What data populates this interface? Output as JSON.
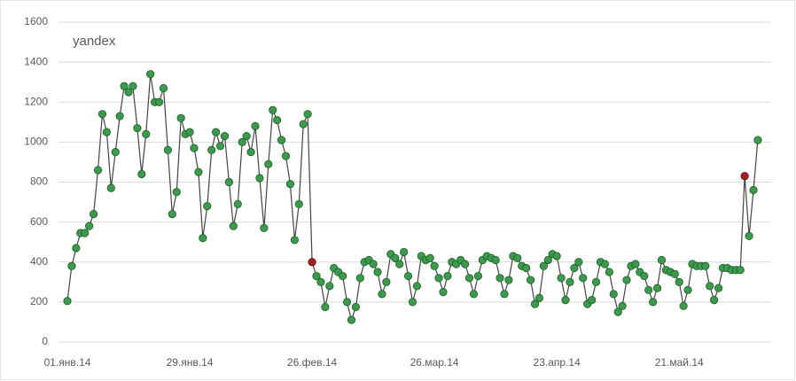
{
  "chart_data": {
    "type": "line",
    "categories": [
      "01.янв.14",
      null,
      null,
      null,
      null,
      null,
      null,
      null,
      null,
      null,
      null,
      null,
      null,
      null,
      null,
      null,
      null,
      null,
      null,
      null,
      null,
      null,
      null,
      null,
      null,
      null,
      null,
      null,
      "29.янв.14",
      null,
      null,
      null,
      null,
      null,
      null,
      null,
      null,
      null,
      null,
      null,
      null,
      null,
      null,
      null,
      null,
      null,
      null,
      null,
      null,
      null,
      null,
      null,
      null,
      null,
      null,
      null,
      "26.фев.14",
      null,
      null,
      null,
      null,
      null,
      null,
      null,
      null,
      null,
      null,
      null,
      null,
      null,
      null,
      null,
      null,
      null,
      null,
      null,
      null,
      null,
      null,
      null,
      null,
      null,
      null,
      null,
      "26.мар.14",
      null,
      null,
      null,
      null,
      null,
      null,
      null,
      null,
      null,
      null,
      null,
      null,
      null,
      null,
      null,
      null,
      null,
      null,
      null,
      null,
      null,
      null,
      null,
      null,
      null,
      null,
      null,
      "23.апр.14",
      null,
      null,
      null,
      null,
      null,
      null,
      null,
      null,
      null,
      null,
      null,
      null,
      null,
      null,
      null,
      null,
      null,
      null,
      null,
      null,
      null,
      null,
      null,
      null,
      null,
      null,
      null,
      "21.май.14",
      null,
      null,
      null,
      null,
      null,
      null,
      null,
      null,
      null,
      null,
      null,
      null,
      null,
      null,
      null,
      null,
      null,
      null
    ],
    "series": [
      {
        "name": "yandex",
        "color": "#444444",
        "marker_color": "#3c9a4c",
        "highlight_color": "#a61e22",
        "highlight_indices": [
          56,
          155
        ],
        "values": [
          205,
          380,
          470,
          545,
          545,
          580,
          640,
          860,
          1140,
          1050,
          770,
          950,
          1130,
          1280,
          1250,
          1280,
          1070,
          840,
          1040,
          1340,
          1200,
          1200,
          1270,
          960,
          640,
          750,
          1120,
          1040,
          1050,
          970,
          850,
          520,
          680,
          960,
          1050,
          980,
          1030,
          800,
          580,
          690,
          1000,
          1030,
          950,
          1080,
          820,
          570,
          890,
          1160,
          1110,
          1010,
          930,
          790,
          510,
          690,
          1090,
          1140,
          400,
          330,
          300,
          175,
          280,
          370,
          350,
          330,
          200,
          110,
          175,
          320,
          400,
          410,
          390,
          350,
          240,
          300,
          440,
          420,
          390,
          450,
          330,
          200,
          280,
          430,
          410,
          420,
          380,
          320,
          250,
          330,
          400,
          390,
          410,
          390,
          320,
          240,
          330,
          410,
          430,
          420,
          410,
          320,
          240,
          310,
          430,
          420,
          380,
          370,
          310,
          190,
          220,
          380,
          410,
          440,
          430,
          320,
          210,
          300,
          370,
          400,
          320,
          190,
          210,
          300,
          400,
          390,
          350,
          240,
          150,
          180,
          310,
          380,
          390,
          350,
          330,
          260,
          200,
          270,
          410,
          360,
          350,
          340,
          300,
          180,
          260,
          390,
          380,
          380,
          380,
          280,
          210,
          270,
          370,
          370,
          360,
          360,
          360,
          830,
          530,
          760,
          1010
        ]
      }
    ],
    "ylim": [
      0,
      1600
    ],
    "yticks": [
      0,
      200,
      400,
      600,
      800,
      1000,
      1200,
      1400,
      1600
    ],
    "grid": true
  }
}
